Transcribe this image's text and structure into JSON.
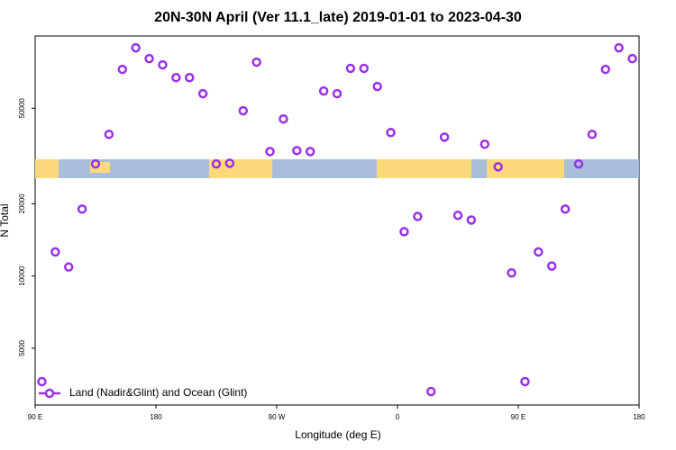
{
  "chart_data": {
    "type": "scatter",
    "title": "20N-30N April (Ver 11.1_late)   2019-01-01 to 2023-04-30",
    "x_label": "Longitude (deg E)",
    "y_label": "N Total",
    "yscale": "log",
    "legend": "bottom-left",
    "xlim": [
      90,
      540
    ],
    "xticks": [
      {
        "value": 90,
        "label": "90 E"
      },
      180,
      {
        "value": 270,
        "label": "90 W"
      },
      {
        "value": 360,
        "label": "0"
      },
      {
        "value": 450,
        "label": "90 E"
      },
      {
        "value": 540,
        "label": "180"
      }
    ],
    "ylim": [
      2900,
      100000
    ],
    "yticks": [
      5000,
      10000,
      20000,
      50000
    ],
    "x": [
      95,
      105,
      115,
      125,
      135,
      145,
      155,
      165,
      175,
      185,
      195,
      205,
      215,
      225,
      235,
      245,
      255,
      265,
      275,
      285,
      295,
      305,
      315,
      325,
      335,
      345,
      355,
      365,
      375,
      385,
      395,
      405,
      415,
      425,
      435,
      445,
      455,
      465,
      475,
      485,
      495,
      505,
      515,
      525,
      535
    ],
    "series": [
      {
        "name": "Land (Nadir&Glint) and Ocean (Glint)",
        "color": "#9b30e8",
        "values": [
          3630,
          12600,
          10900,
          19000,
          29300,
          38900,
          72600,
          89300,
          80500,
          75800,
          67100,
          67100,
          57500,
          29300,
          29500,
          48800,
          77800,
          33000,
          45100,
          33300,
          33000,
          59000,
          57500,
          73300,
          73300,
          61600,
          39600,
          15300,
          17700,
          3300,
          37900,
          17900,
          17100,
          35400,
          28500,
          10300,
          3630,
          12600,
          11000,
          19000,
          29300,
          38900,
          72600,
          89300,
          80500
        ]
      }
    ]
  }
}
